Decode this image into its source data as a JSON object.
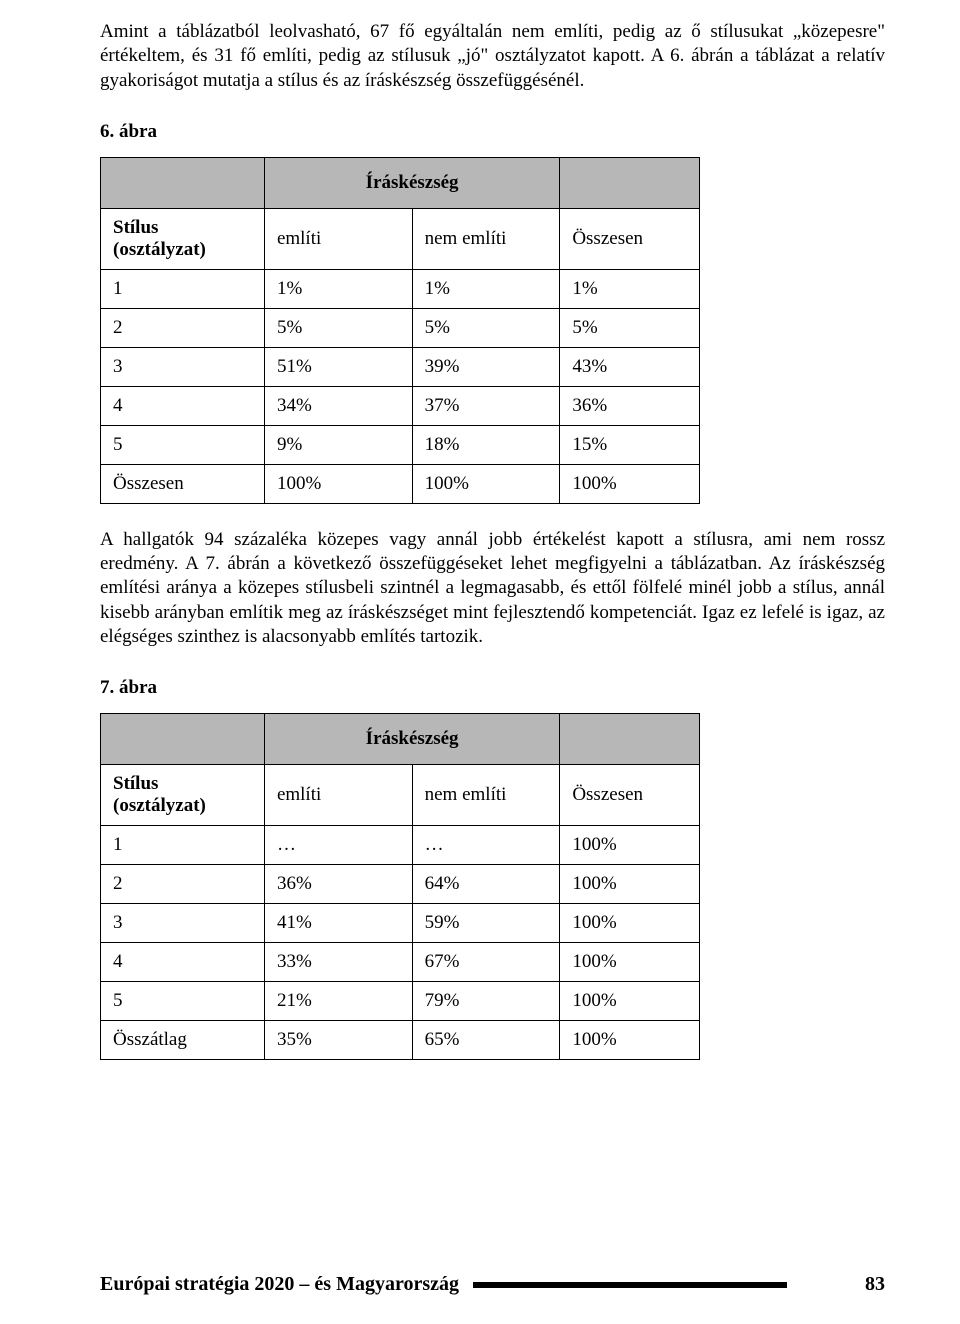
{
  "para1": "Amint a táblázatból leolvasható, 67 fő egyáltalán nem említi, pedig az ő stílusukat „közepesre\" értékeltem, és 31 fő említi, pedig az stílusuk „jó\" osztályzatot kapott. A 6. ábrán a táblázat a relatív gyakoriságot mutatja a stílus és az íráskészség összefüggésénél.",
  "fig6": {
    "label": "6. ábra",
    "colhead_mid": "Íráskészség",
    "rowhead": "Stílus (osztályzat)",
    "cols": [
      "említi",
      "nem említi",
      "Összesen"
    ],
    "rows": [
      [
        "1",
        "1%",
        "1%",
        "1%"
      ],
      [
        "2",
        "5%",
        "5%",
        "5%"
      ],
      [
        "3",
        "51%",
        "39%",
        "43%"
      ],
      [
        "4",
        "34%",
        "37%",
        "36%"
      ],
      [
        "5",
        "9%",
        "18%",
        "15%"
      ],
      [
        "Összesen",
        "100%",
        "100%",
        "100%"
      ]
    ]
  },
  "para2": "A hallgatók 94 százaléka közepes vagy annál jobb értékelést kapott a stílusra, ami nem rossz eredmény. A 7. ábrán a következő összefüggéseket lehet megfigyelni a táblázatban. Az íráskészség említési aránya a közepes stílusbeli szintnél a legmagasabb, és ettől fölfelé minél jobb a stílus, annál kisebb arányban említik meg az íráskészséget mint fejlesztendő kompetenciát. Igaz ez lefelé is igaz, az elégséges szinthez is alacsonyabb említés tartozik.",
  "fig7": {
    "label": "7. ábra",
    "colhead_mid": "Íráskészség",
    "rowhead": "Stílus (osztályzat)",
    "cols": [
      "említi",
      "nem említi",
      "Összesen"
    ],
    "rows": [
      [
        "1",
        "…",
        "…",
        "100%"
      ],
      [
        "2",
        "36%",
        "64%",
        "100%"
      ],
      [
        "3",
        "41%",
        "59%",
        "100%"
      ],
      [
        "4",
        "33%",
        "67%",
        "100%"
      ],
      [
        "5",
        "21%",
        "79%",
        "100%"
      ],
      [
        "Összátlag",
        "35%",
        "65%",
        "100%"
      ]
    ]
  },
  "footer": {
    "title": "Európai stratégia 2020 – és Magyarország",
    "page": "83"
  },
  "colors": {
    "header_bg": "#b7b7b7",
    "text": "#000000",
    "bg": "#ffffff"
  }
}
